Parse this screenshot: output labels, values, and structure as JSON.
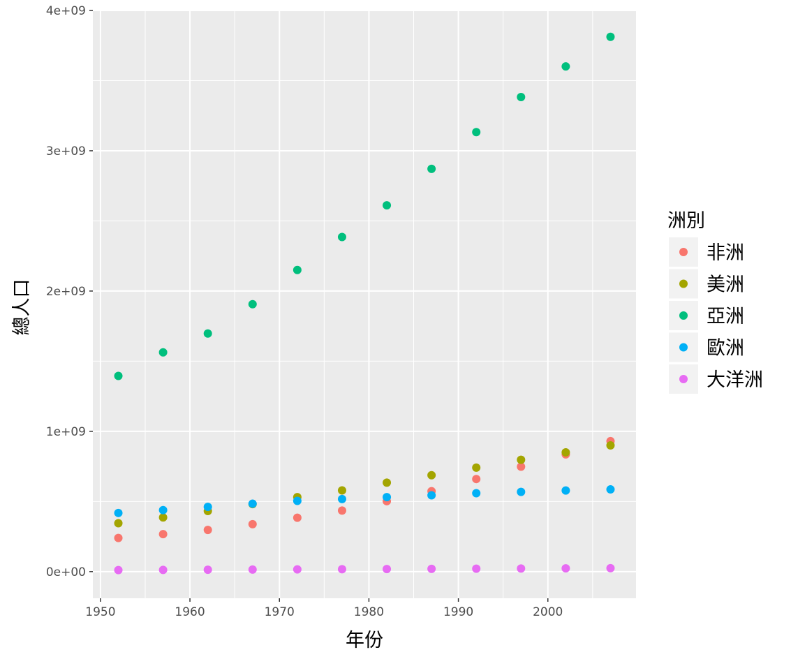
{
  "chart_data": {
    "type": "scatter",
    "xlabel": "年份",
    "ylabel": "總人口",
    "x": [
      1952,
      1957,
      1962,
      1967,
      1972,
      1977,
      1982,
      1987,
      1992,
      1997,
      2002,
      2007
    ],
    "xlim": [
      1949.15,
      2009.85
    ],
    "ylim": [
      -190000000,
      4000000000
    ],
    "x_ticks": [
      1950,
      1960,
      1970,
      1980,
      1990,
      2000
    ],
    "x_tick_labels": [
      "1950",
      "1960",
      "1970",
      "1980",
      "1990",
      "2000"
    ],
    "y_ticks": [
      0,
      1000000000,
      2000000000,
      3000000000,
      4000000000
    ],
    "y_tick_labels": [
      "0e+00",
      "1e+09",
      "2e+09",
      "3e+09",
      "4e+09"
    ],
    "grid": true,
    "legend": {
      "title": "洲別",
      "position": "right"
    },
    "series": [
      {
        "name": "非洲",
        "color": "#F8766D",
        "values": [
          240000000,
          267000000,
          297000000,
          338000000,
          384000000,
          435000000,
          502000000,
          573000000,
          660000000,
          748000000,
          836000000,
          930000000
        ]
      },
      {
        "name": "美洲",
        "color": "#A3A500",
        "values": [
          345000000,
          386000000,
          432000000,
          481000000,
          531000000,
          579000000,
          634000000,
          687000000,
          741000000,
          797000000,
          850000000,
          900000000
        ]
      },
      {
        "name": "亞洲",
        "color": "#00BF7D",
        "values": [
          1395000000,
          1563000000,
          1697000000,
          1906000000,
          2150000000,
          2385000000,
          2611000000,
          2871000000,
          3133000000,
          3383000000,
          3601000000,
          3812000000
        ]
      },
      {
        "name": "歐洲",
        "color": "#00B0F6",
        "values": [
          418000000,
          438000000,
          461000000,
          484000000,
          504000000,
          517000000,
          531000000,
          544000000,
          559000000,
          568000000,
          578000000,
          586000000
        ]
      },
      {
        "name": "大洋洲",
        "color": "#E76BF3",
        "values": [
          10700000,
          11900000,
          13300000,
          14600000,
          16100000,
          17200000,
          18400000,
          19500000,
          20900000,
          22200000,
          23500000,
          24500000
        ]
      }
    ]
  }
}
